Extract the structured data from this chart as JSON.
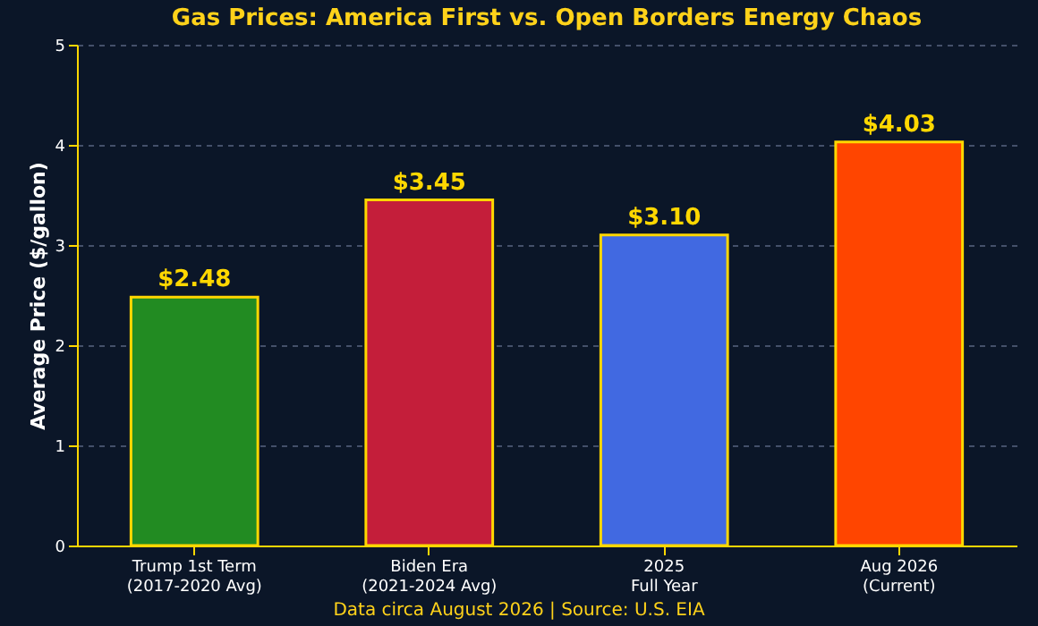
{
  "chart_data": {
    "type": "bar",
    "title": "Gas Prices: America First vs. Open Borders Energy Chaos",
    "categories": [
      "Trump 1st Term\n(2017-2020 Avg)",
      "Biden Era\n(2021-2024 Avg)",
      "2025\nFull Year",
      "Aug 2026\n(Current)"
    ],
    "values": [
      2.48,
      3.45,
      3.1,
      4.03
    ],
    "colors": [
      "#228b22",
      "#c41e3a",
      "#4169e1",
      "#ff4500"
    ],
    "value_labels": [
      "$2.48",
      "$3.45",
      "$3.10",
      "$4.03"
    ],
    "ylabel": "Average Price ($/gallon)",
    "ylim": [
      0,
      5
    ],
    "yticks": [
      0,
      1,
      2,
      3,
      4,
      5
    ],
    "grid": "y",
    "annotations": [
      "Data circa August 2026 | Source: U.S. EIA"
    ]
  }
}
